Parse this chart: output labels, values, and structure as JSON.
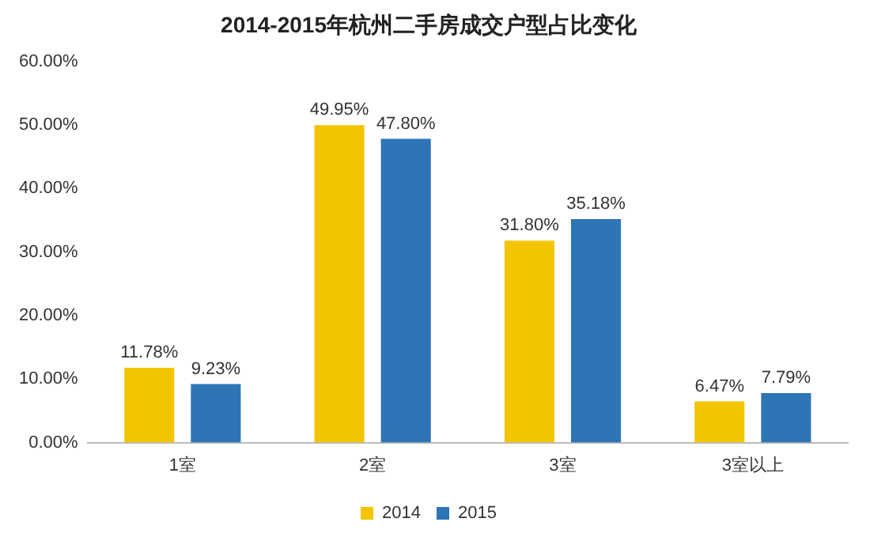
{
  "chart_data": {
    "type": "bar",
    "title": "2014-2015年杭州二手房成交户型占比变化",
    "categories": [
      "1室",
      "2室",
      "3室",
      "3室以上"
    ],
    "series": [
      {
        "name": "2014",
        "color": "#f2c500",
        "values": [
          11.78,
          49.95,
          31.8,
          6.47
        ],
        "value_labels": [
          "11.78%",
          "49.95%",
          "31.80%",
          "6.47%"
        ]
      },
      {
        "name": "2015",
        "color": "#2e75b6",
        "values": [
          9.23,
          47.8,
          35.18,
          7.79
        ],
        "value_labels": [
          "9.23%",
          "47.80%",
          "35.18%",
          "7.79%"
        ]
      }
    ],
    "ylim": [
      0,
      60
    ],
    "yticks": [
      {
        "value": 0,
        "label": "0.00%"
      },
      {
        "value": 10,
        "label": "10.00%"
      },
      {
        "value": 20,
        "label": "20.00%"
      },
      {
        "value": 30,
        "label": "30.00%"
      },
      {
        "value": 40,
        "label": "40.00%"
      },
      {
        "value": 50,
        "label": "50.00%"
      },
      {
        "value": 60,
        "label": "60.00%"
      }
    ],
    "grid": false,
    "legend": "bottom"
  }
}
